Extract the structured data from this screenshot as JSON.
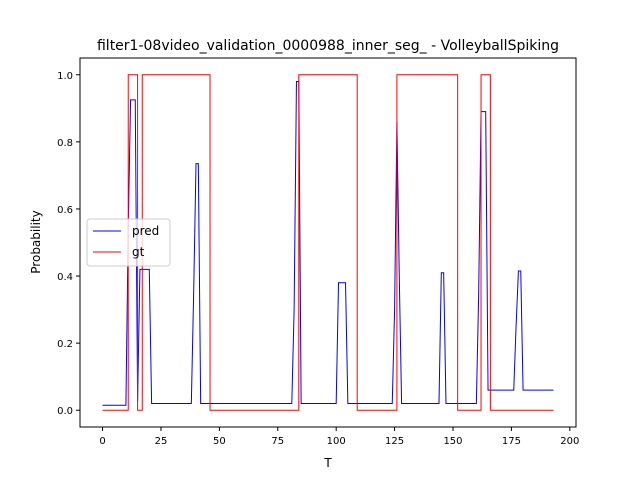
{
  "chart_data": {
    "type": "line",
    "title": "filter1-08video_validation_0000988_inner_seg_ - VolleyballSpiking",
    "xlabel": "T",
    "ylabel": "Probability",
    "xlim": [
      -9.65,
      202.65
    ],
    "ylim": [
      -0.05,
      1.05
    ],
    "xticks": [
      0,
      25,
      50,
      75,
      100,
      125,
      150,
      175,
      200
    ],
    "yticks": [
      0.0,
      0.2,
      0.4,
      0.6,
      0.8,
      1.0
    ],
    "xtick_labels": [
      "0",
      "25",
      "50",
      "75",
      "100",
      "125",
      "150",
      "175",
      "200"
    ],
    "ytick_labels": [
      "0.0",
      "0.2",
      "0.4",
      "0.6",
      "0.8",
      "1.0"
    ],
    "grid": false,
    "legend_position": "center-left",
    "series": [
      {
        "name": "pred",
        "color": "#0000ff",
        "x": [
          0,
          10,
          11,
          12,
          13,
          14,
          15,
          16,
          17,
          18,
          19,
          20,
          21,
          38,
          39,
          40,
          41,
          42,
          81,
          82,
          83,
          84,
          85,
          100,
          101,
          102,
          103,
          104,
          105,
          124,
          125,
          126,
          127,
          128,
          144,
          145,
          146,
          147,
          160,
          161,
          162,
          163,
          164,
          165,
          176,
          177,
          178,
          179,
          180,
          193
        ],
        "y": [
          0.015,
          0.015,
          0.55,
          0.925,
          0.925,
          0.925,
          0.025,
          0.42,
          0.42,
          0.42,
          0.42,
          0.42,
          0.02,
          0.02,
          0.35,
          0.735,
          0.735,
          0.02,
          0.02,
          0.3,
          0.98,
          0.98,
          0.02,
          0.02,
          0.38,
          0.38,
          0.38,
          0.38,
          0.02,
          0.02,
          0.3,
          0.86,
          0.4,
          0.02,
          0.02,
          0.41,
          0.41,
          0.02,
          0.02,
          0.35,
          0.89,
          0.89,
          0.89,
          0.06,
          0.06,
          0.25,
          0.415,
          0.415,
          0.06,
          0.06
        ]
      },
      {
        "name": "gt",
        "color": "#ff0000",
        "x": [
          0,
          11,
          11,
          15,
          15,
          17,
          17,
          46,
          46,
          84,
          84,
          109,
          109,
          126,
          126,
          152,
          152,
          162,
          162,
          166,
          166,
          193
        ],
        "y": [
          0,
          0,
          1,
          1,
          0,
          0,
          1,
          1,
          0,
          0,
          1,
          1,
          0,
          0,
          1,
          1,
          0,
          0,
          1,
          1,
          0,
          0
        ]
      }
    ]
  }
}
